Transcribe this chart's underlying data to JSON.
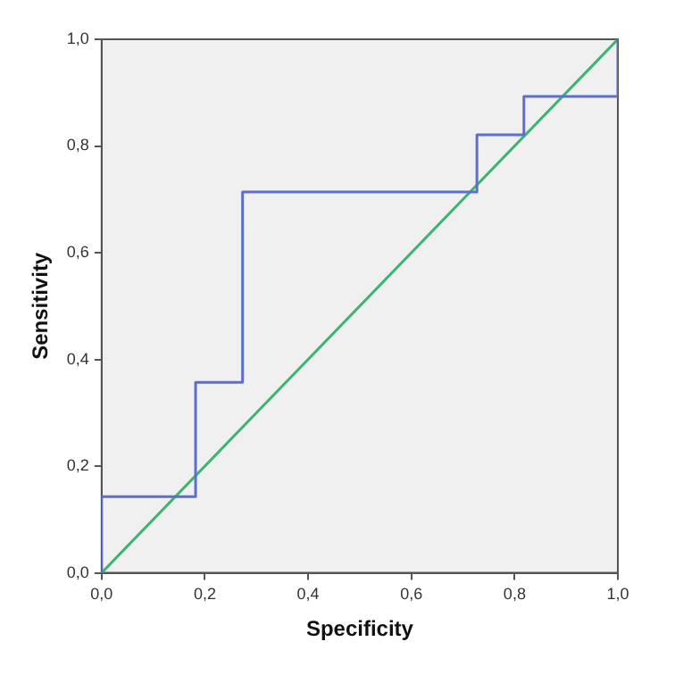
{
  "chart_data": {
    "type": "line",
    "xlabel": "Specificity",
    "ylabel": "Sensitivity",
    "series": [
      {
        "color": "#5a6fd0",
        "x": [
          0,
          0,
          0.182,
          0.182,
          0.273,
          0.273,
          0.727,
          0.727,
          0.818,
          0.818,
          1,
          1
        ],
        "values": [
          0,
          0.143,
          0.143,
          0.357,
          0.357,
          0.714,
          0.714,
          0.821,
          0.821,
          0.893,
          0.893,
          1
        ]
      },
      {
        "color": "#3cb46e",
        "x": [
          0,
          1
        ],
        "values": [
          0,
          1
        ]
      }
    ],
    "xlim": [
      0,
      1
    ],
    "ylim": [
      0,
      1
    ],
    "xticks": [
      {
        "value": 0,
        "label": "0,0"
      },
      {
        "value": 0.2,
        "label": "0,2"
      },
      {
        "value": 0.4,
        "label": "0,4"
      },
      {
        "value": 0.6,
        "label": "0,6"
      },
      {
        "value": 0.8,
        "label": "0,8"
      },
      {
        "value": 1,
        "label": "1,0"
      }
    ],
    "yticks": [
      {
        "value": 0,
        "label": "0,0"
      },
      {
        "value": 0.2,
        "label": "0,2"
      },
      {
        "value": 0.4,
        "label": "0,4"
      },
      {
        "value": 0.6,
        "label": "0,6"
      },
      {
        "value": 0.8,
        "label": "0,8"
      },
      {
        "value": 1,
        "label": "1,0"
      }
    ],
    "grid": false,
    "legend": false,
    "marker": "none",
    "line_style": "solid"
  }
}
